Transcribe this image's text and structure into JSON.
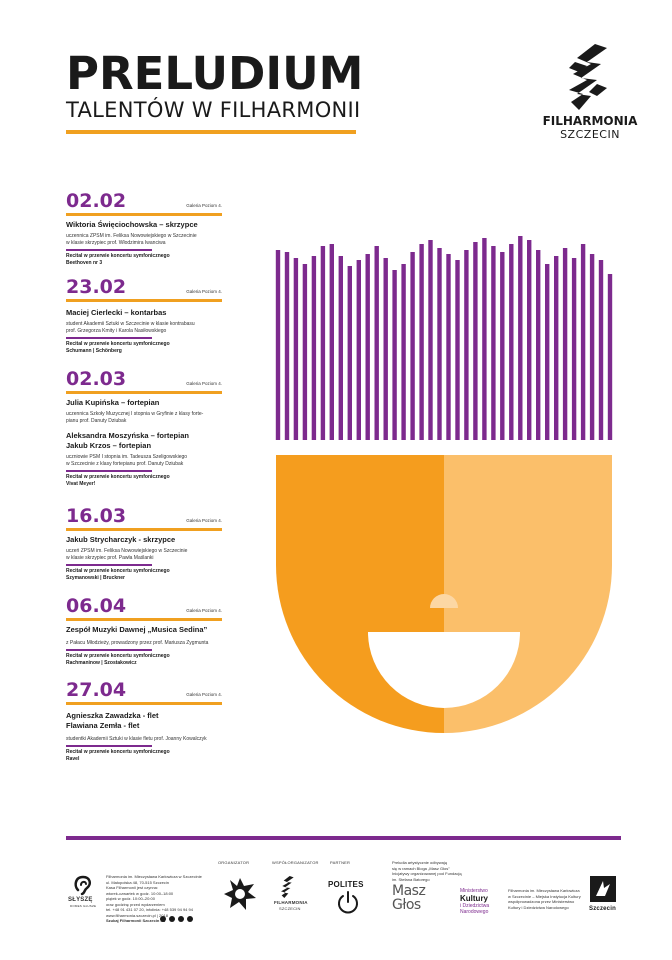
{
  "header": {
    "title": "PRELUDIUM",
    "subtitle": "TALENTÓW W FILHARMONII"
  },
  "brand": {
    "name": "FILHARMONIA",
    "city": "SZCZECIN"
  },
  "colors": {
    "purple": "#7d2a8e",
    "orange": "#f0a020",
    "orange_dark": "#f59d1e",
    "orange_light": "#fbbf6a"
  },
  "events": [
    {
      "date": "02.02",
      "venue": "Galeria Poziom 4.",
      "performers": [
        "Wiktoria Święciochowska – skrzypce"
      ],
      "description": [
        "uczennica ZPSM im. Feliksa Nowowiejskiego w Szczecinie",
        "w klasie skrzypiec prof. Włodzimira Iwanciwa"
      ],
      "recital": [
        "Recital w przerwie koncertu symfonicznego",
        "Beethoven nr 3"
      ]
    },
    {
      "date": "23.02",
      "venue": "Galeria Poziom 4.",
      "performers": [
        "Maciej Cierlecki – kontarbas"
      ],
      "description": [
        "student Akademii Sztuki w Szczecinie w klasie kontrabasu",
        "prof. Grzegorza Kmity i Karola Nasiłowskiego"
      ],
      "recital": [
        "Recital w przerwie koncertu symfonicznego",
        "Schumann | Schönberg"
      ]
    },
    {
      "date": "02.03",
      "venue": "Galeria Poziom 4.",
      "performers": [
        "Julia Kupińska – fortepian"
      ],
      "description": [
        "uczennica Szkoły Muzycznej I stopnia w Gryfinie z klasy forte-",
        "pianu prof. Danuty Dziubak"
      ],
      "performers2": [
        "Aleksandra Moszyńska – fortepian",
        "Jakub Krzos – fortepian"
      ],
      "description2": [
        "uczniowie PSM I stopnia im. Tadeusza Szeligowskiego",
        "w Szczecinie z klasy fortepianu prof. Danuty Dziubak"
      ],
      "recital": [
        "Recital w przerwie koncertu symfonicznego",
        "Vivat Meyer!"
      ]
    },
    {
      "date": "16.03",
      "venue": "Galeria Poziom 4.",
      "performers": [
        "Jakub Strycharczyk - skrzypce"
      ],
      "description": [
        "uczeń ZPSM im. Feliksa Nowowiejskiego w Szczecinie",
        "w klasie skrzypiec prof. Pawła Maślanki"
      ],
      "recital": [
        "Recital w przerwie koncertu symfonicznego",
        "Szymanowski | Bruckner"
      ]
    },
    {
      "date": "06.04",
      "venue": "Galeria Poziom 4.",
      "performers": [
        "Zespół Muzyki Dawnej „Musica Sedina”"
      ],
      "description": [
        "z Pałacu Młodzieży, prowadzony przez prof. Mariusza Zygmunta"
      ],
      "recital": [
        "Recital w przerwie koncertu symfonicznego",
        "Rachmaninow | Szostakowicz"
      ]
    },
    {
      "date": "27.04",
      "venue": "Galeria Poziom 4.",
      "performers": [
        "Agnieszka Zawadzka - flet",
        "Flawiana Zemła - flet"
      ],
      "description": [
        "studentki Akademii Sztuki w klasie fletu prof. Joanny Kowalczyk"
      ],
      "recital": [
        "Recital w przerwie koncertu symfonicznego",
        "Ravel"
      ]
    }
  ],
  "footer": {
    "slysze": "SŁYSZĘ",
    "slysze_sub": "DOMES GŁUSZE",
    "info": [
      "Filharmonia im. Mieczysława Karłowicza w Szczecinie",
      "ul. Małopolska 48, 70-515 Szczecin",
      "Kasa Filharmonii jest czynna:",
      "wtorek-czwartek w godz. 10:00–18:00",
      "piątek w godz. 10:00–20:00",
      "oraz godzinę przed wydarzeniem",
      "tel. +48 91 431 07 20, infolinia: +48 539 94 94 94",
      "www.filharmonia.szczecin.pl | 2018"
    ],
    "social": "Szukaj Filharmonii Szczecin na",
    "organizer_label": "ORGANIZATOR",
    "coorganizer_label": "WSPÓŁORGANIZATOR",
    "coorganizer_name": "FILHARMONIA",
    "coorganizer_city": "SZCZECIN",
    "partner_label": "PARTNER",
    "partner_name": "POLITES",
    "fundacja_text": [
      "Preludia artystycznie odbywają",
      "się w ramach Bloga „Masz Głos”",
      "Inicjatywy organizowanej pod Fundacją",
      "im. Stefana Batorego"
    ],
    "masz": "Masz",
    "glos": "Głos",
    "ministry_top": "Ministerstwo",
    "ministry_kultury": "Kultury",
    "ministry_bottom": [
      "i Dziedzictwa",
      "Narodowego"
    ],
    "ministry_text": [
      "Filharmonia im. Mieczysława Karłowicza",
      "w Szczecinie – Miejska Instytucja Kultury",
      "współprowadzona przez Ministerstwo",
      "Kultury i Dziedzictwa Narodowego"
    ],
    "city_name": "Szczecin"
  }
}
